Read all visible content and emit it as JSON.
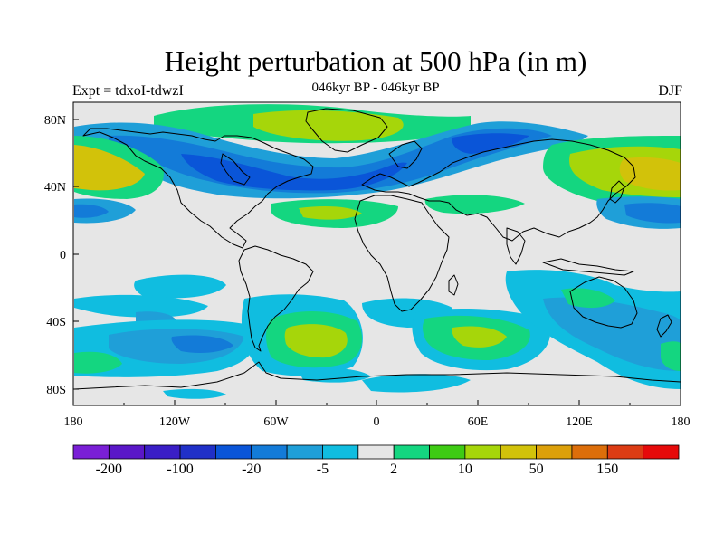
{
  "title": "Height perturbation at 500 hPa (in m)",
  "subtitle_left": "Expt = tdxoI-tdwzI",
  "subtitle_center": "046kyr BP - 046kyr BP",
  "subtitle_right": "DJF",
  "lon_labels": [
    "180",
    "120W",
    "60W",
    "0",
    "60E",
    "120E",
    "180"
  ],
  "lat_labels": [
    "80N",
    "40N",
    "0",
    "40S",
    "80S"
  ],
  "colorbar": {
    "colors": [
      "#7a1fd6",
      "#5a17c8",
      "#3a1ec6",
      "#2030c8",
      "#0a55d8",
      "#137bd8",
      "#1f9fd8",
      "#10bde0",
      "#e6e6e6",
      "#14d680",
      "#3ecb14",
      "#a6d60a",
      "#d2c20a",
      "#dca00a",
      "#dc6e0a",
      "#dc3c14",
      "#e60a0a"
    ],
    "labels": [
      "-200",
      "-100",
      "-20",
      "-5",
      "2",
      "10",
      "50",
      "150"
    ]
  },
  "background_color": "#e6e6e6",
  "land_outline_color": "#000000"
}
